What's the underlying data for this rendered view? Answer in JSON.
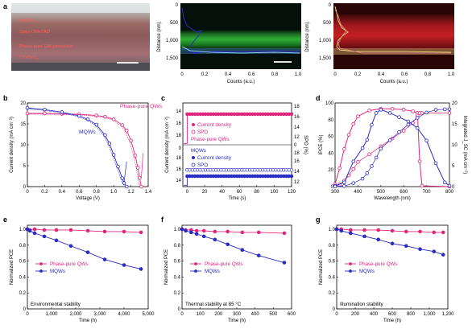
{
  "colors": {
    "magenta": "#e0267c",
    "blue": "#2a2ac4",
    "green": "#1f9a2a",
    "red": "#c0161d",
    "panel_label": "#000000"
  },
  "panel_a": {
    "label": "a",
    "layers": [
      "Au/MoO",
      "Spiro-OMeTAD",
      "Phase-pure QW perovskite",
      "ITO/SnO"
    ],
    "layer_subscripts": [
      "3",
      "",
      "",
      "2"
    ],
    "ylabel": "Distance (nm)",
    "yticks": [
      "0",
      "500",
      "1,000",
      "1,500"
    ],
    "xlabel": "Counts (a.u.)",
    "xticks": [
      "0",
      "0.2",
      "0.4",
      "0.6",
      "0.8",
      "1.0"
    ]
  },
  "chart_data": [
    {
      "id": "b",
      "type": "line",
      "xlabel": "Voltage (V)",
      "ylabel": "Current density (mA cm⁻²)",
      "xlim": [
        0,
        1.4
      ],
      "ylim": [
        0,
        20
      ],
      "xticks": [
        "0",
        "0.2",
        "0.4",
        "0.6",
        "0.8",
        "1.0",
        "1.2",
        "1.4"
      ],
      "yticks": [
        "0",
        "5",
        "10",
        "15",
        "20"
      ],
      "annotations": [
        "Phase-pure QWs",
        "MQWs"
      ],
      "series": [
        {
          "name": "Phase-pure QWs",
          "x": [
            0,
            0.2,
            0.4,
            0.6,
            0.8,
            0.9,
            1.0,
            1.1,
            1.15,
            1.2,
            1.25,
            1.28,
            1.3,
            1.32
          ],
          "y": [
            17.5,
            17.5,
            17.4,
            17.3,
            17.0,
            16.7,
            16.1,
            14.7,
            13.4,
            11.0,
            7.4,
            4.5,
            2.1,
            0
          ]
        },
        {
          "name": "MQWs",
          "x": [
            0,
            0.2,
            0.4,
            0.6,
            0.7,
            0.8,
            0.9,
            0.95,
            1.0,
            1.05,
            1.1,
            1.12,
            1.15
          ],
          "y": [
            18.8,
            18.4,
            17.8,
            16.9,
            16.1,
            14.8,
            12.3,
            10.3,
            7.6,
            4.8,
            2.0,
            0.9,
            0
          ]
        }
      ]
    },
    {
      "id": "c",
      "type": "line",
      "xlabel": "Time (s)",
      "ylabel_left": "Current density (mA cm⁻²)",
      "ylabel_right": "SPO (%)",
      "xlim": [
        -5,
        120
      ],
      "xticks": [
        "0",
        "20",
        "40",
        "60",
        "80",
        "100",
        "120"
      ],
      "top_yticks": [
        "14",
        "16",
        "18"
      ],
      "bottom_yticks": [
        "14",
        "16",
        "18",
        "0"
      ],
      "right_yticks_top": [
        "18",
        "16",
        "14",
        "12",
        "0"
      ],
      "right_yticks_bottom": [
        "16",
        "14",
        "12",
        "18"
      ],
      "legend_top": [
        "Current density",
        "SPO",
        "Phase-pure QWs"
      ],
      "legend_bottom": [
        "MQWs",
        "Current density",
        "SPO"
      ],
      "series": [
        {
          "name": "Current density",
          "x": [
            0,
            120
          ],
          "y": [
            16.9,
            16.9
          ]
        },
        {
          "name": "SPO",
          "x": [
            0,
            120
          ],
          "y": [
            17.0,
            17.0
          ]
        },
        {
          "name": "Current density",
          "x": [
            0,
            120
          ],
          "y": [
            14.0,
            14.0
          ]
        },
        {
          "name": "SPO",
          "x": [
            0,
            120
          ],
          "y": [
            14.9,
            14.9
          ]
        }
      ]
    },
    {
      "id": "d",
      "type": "line",
      "xlabel": "Wavelength (nm)",
      "ylabel_left": "IPCE (%)",
      "ylabel_right": "Integrated J_SC (mA cm⁻²)",
      "xlim": [
        300,
        800
      ],
      "ylim_left": [
        0,
        100
      ],
      "ylim_right": [
        0,
        20
      ],
      "xticks": [
        "300",
        "400",
        "500",
        "600",
        "700",
        "800"
      ],
      "yticks_left": [
        "0",
        "20",
        "40",
        "60",
        "80",
        "100"
      ],
      "yticks_right": [
        "0",
        "5",
        "10",
        "15",
        "20"
      ],
      "series": [
        {
          "name": "",
          "x": [
            300,
            320,
            340,
            360,
            380,
            400,
            450,
            500,
            550,
            600,
            640,
            660,
            670,
            680,
            800
          ],
          "y": [
            3,
            22,
            45,
            62,
            75,
            84,
            91,
            93,
            93,
            92,
            90,
            88,
            30,
            1,
            0
          ]
        },
        {
          "name": "",
          "x": [
            300,
            340,
            380,
            420,
            440,
            460,
            480,
            500,
            540,
            580,
            620,
            660,
            700,
            740,
            780,
            800
          ],
          "y": [
            1,
            5,
            30,
            46,
            56,
            74,
            88,
            92,
            88,
            83,
            78,
            70,
            55,
            28,
            5,
            1
          ]
        }
      ]
    },
    {
      "id": "e",
      "type": "line",
      "xlabel": "Time (h)",
      "ylabel": "Normalized PCE",
      "xlim": [
        0,
        5000
      ],
      "ylim": [
        0,
        1.05
      ],
      "xticks": [
        "0",
        "1,000",
        "2,000",
        "3,000",
        "4,000",
        "5,000"
      ],
      "yticks": [
        "0",
        "0.2",
        "0.4",
        "0.6",
        "0.8",
        "1.0"
      ],
      "legend": [
        "Phase-pure QWs",
        "MQWs"
      ],
      "note": "Environmental stability",
      "series": [
        {
          "name": "Phase-pure QWs",
          "x": [
            0,
            100,
            300,
            700,
            1200,
            1800,
            2500,
            3200,
            4000,
            4700
          ],
          "y": [
            1.0,
            0.99,
            1.0,
            0.99,
            0.99,
            0.99,
            0.98,
            0.97,
            0.97,
            0.96
          ]
        },
        {
          "name": "MQWs",
          "x": [
            0,
            100,
            300,
            700,
            1200,
            1800,
            2500,
            3200,
            4000,
            4700
          ],
          "y": [
            1.0,
            0.98,
            0.95,
            0.91,
            0.86,
            0.79,
            0.71,
            0.62,
            0.55,
            0.5
          ]
        }
      ]
    },
    {
      "id": "f",
      "type": "line",
      "xlabel": "Time (h)",
      "ylabel": "Normalized PCE",
      "xlim": [
        0,
        600
      ],
      "ylim": [
        0,
        1.05
      ],
      "xticks": [
        "0",
        "100",
        "200",
        "300",
        "400",
        "500",
        "600"
      ],
      "yticks": [
        "0",
        "0.2",
        "0.4",
        "0.6",
        "0.8",
        "1.0"
      ],
      "legend": [
        "Phase-pure QWs",
        "MQWs"
      ],
      "note": "Thermal stability at 85 °C",
      "series": [
        {
          "name": "Phase-pure QWs",
          "x": [
            0,
            20,
            50,
            80,
            120,
            180,
            250,
            330,
            420,
            560
          ],
          "y": [
            1.0,
            0.99,
            0.99,
            0.98,
            0.98,
            0.97,
            0.97,
            0.96,
            0.96,
            0.95
          ]
        },
        {
          "name": "MQWs",
          "x": [
            0,
            20,
            50,
            80,
            120,
            180,
            250,
            330,
            420,
            560
          ],
          "y": [
            1.0,
            0.98,
            0.96,
            0.94,
            0.91,
            0.87,
            0.81,
            0.74,
            0.67,
            0.58
          ]
        }
      ]
    },
    {
      "id": "g",
      "type": "line",
      "xlabel": "Time (h)",
      "ylabel": "Normalized PCE",
      "xlim": [
        0,
        1200
      ],
      "ylim": [
        0,
        1.05
      ],
      "xticks": [
        "0",
        "200",
        "400",
        "600",
        "800",
        "1,000",
        "1,200"
      ],
      "yticks": [
        "0",
        "0.2",
        "0.4",
        "0.6",
        "0.8",
        "1.0"
      ],
      "legend": [
        "Phase-pure QWs",
        "MQWs"
      ],
      "note": "Illumination stability",
      "series": [
        {
          "name": "Phase-pure QWs",
          "x": [
            0,
            50,
            150,
            300,
            450,
            600,
            750,
            900,
            1050,
            1150
          ],
          "y": [
            1.0,
            1.0,
            0.99,
            0.99,
            0.99,
            0.98,
            0.97,
            0.97,
            0.96,
            0.96
          ]
        },
        {
          "name": "MQWs",
          "x": [
            0,
            50,
            150,
            300,
            450,
            600,
            750,
            900,
            1050,
            1150
          ],
          "y": [
            1.0,
            0.98,
            0.95,
            0.91,
            0.87,
            0.82,
            0.79,
            0.75,
            0.72,
            0.68
          ]
        }
      ]
    }
  ]
}
